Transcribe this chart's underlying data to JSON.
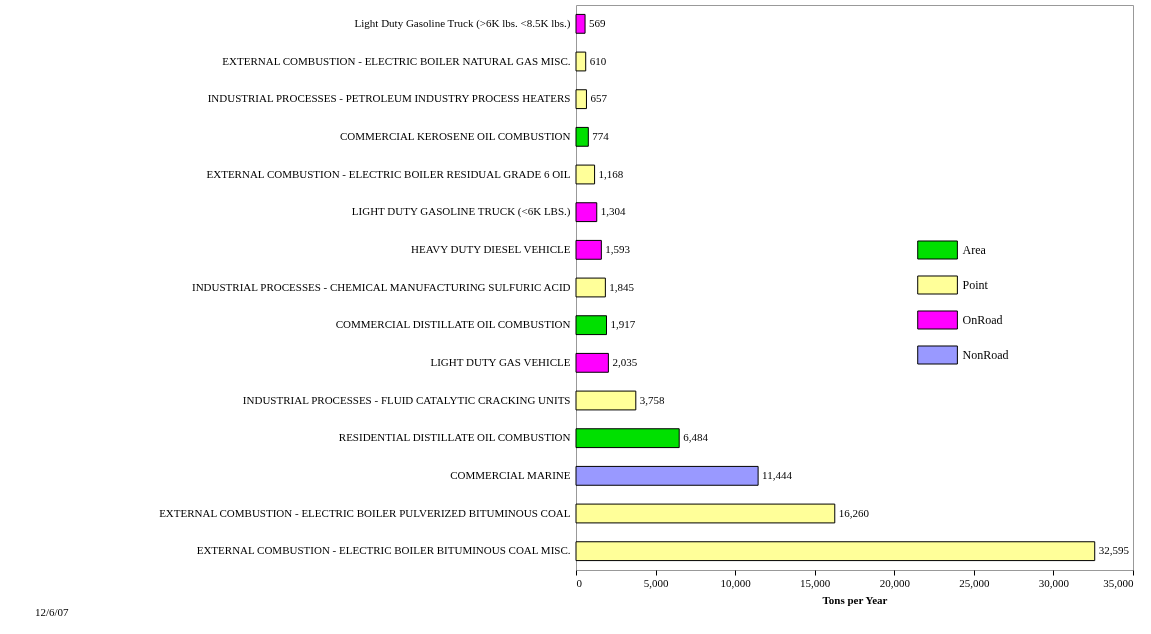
{
  "chart_data": {
    "type": "bar",
    "orientation": "horizontal",
    "categories": [
      "Light Duty Gasoline Truck (>6K lbs. <8.5K lbs.)",
      "EXTERNAL COMBUSTION - ELECTRIC BOILER NATURAL GAS MISC.",
      "INDUSTRIAL PROCESSES - PETROLEUM INDUSTRY PROCESS HEATERS",
      "COMMERCIAL KEROSENE OIL COMBUSTION",
      "EXTERNAL COMBUSTION - ELECTRIC BOILER RESIDUAL GRADE 6 OIL",
      "LIGHT DUTY GASOLINE TRUCK (<6K LBS.)",
      "HEAVY DUTY DIESEL VEHICLE",
      "INDUSTRIAL PROCESSES - CHEMICAL MANUFACTURING SULFURIC ACID",
      "COMMERCIAL DISTILLATE OIL COMBUSTION",
      "LIGHT DUTY GAS VEHICLE",
      "INDUSTRIAL PROCESSES - FLUID CATALYTIC CRACKING UNITS",
      "RESIDENTIAL DISTILLATE OIL COMBUSTION",
      "COMMERCIAL MARINE",
      "EXTERNAL COMBUSTION - ELECTRIC BOILER PULVERIZED BITUMINOUS COAL",
      "EXTERNAL COMBUSTION - ELECTRIC BOILER BITUMINOUS COAL MISC."
    ],
    "series": [
      {
        "name": "Area",
        "color": "#00e000",
        "values": [
          null,
          null,
          null,
          774,
          null,
          null,
          null,
          null,
          1917,
          null,
          null,
          6484,
          null,
          null,
          null
        ],
        "value_labels": [
          null,
          null,
          null,
          "774",
          null,
          null,
          null,
          null,
          "1,917",
          null,
          null,
          "6,484",
          null,
          null,
          null
        ]
      },
      {
        "name": "Point",
        "color": "#ffff99",
        "values": [
          null,
          610,
          657,
          null,
          1168,
          null,
          null,
          1845,
          null,
          null,
          3758,
          null,
          null,
          16260,
          32595
        ],
        "value_labels": [
          null,
          "610",
          "657",
          null,
          "1,168",
          null,
          null,
          "1,845",
          null,
          null,
          "3,758",
          null,
          null,
          "16,260",
          "32,595"
        ]
      },
      {
        "name": "OnRoad",
        "color": "#ff00ff",
        "values": [
          569,
          null,
          null,
          null,
          null,
          1304,
          1593,
          null,
          null,
          2035,
          null,
          null,
          null,
          null,
          null
        ],
        "value_labels": [
          "569",
          null,
          null,
          null,
          null,
          "1,304",
          "1,593",
          null,
          null,
          "2,035",
          null,
          null,
          null,
          null,
          null
        ]
      },
      {
        "name": "NonRoad",
        "color": "#9999ff",
        "values": [
          null,
          null,
          null,
          null,
          null,
          null,
          null,
          null,
          null,
          null,
          null,
          null,
          11444,
          null,
          null
        ],
        "value_labels": [
          null,
          null,
          null,
          null,
          null,
          null,
          null,
          null,
          null,
          null,
          null,
          null,
          "11,444",
          null,
          null
        ]
      }
    ],
    "xlabel": "Tons per Year",
    "xlim": [
      0,
      35000
    ],
    "xticks": [
      {
        "value": 0,
        "label": "0"
      },
      {
        "value": 5000,
        "label": "5,000"
      },
      {
        "value": 10000,
        "label": "10,000"
      },
      {
        "value": 15000,
        "label": "15,000"
      },
      {
        "value": 20000,
        "label": "20,000"
      },
      {
        "value": 25000,
        "label": "25,000"
      },
      {
        "value": 30000,
        "label": "30,000"
      },
      {
        "value": 35000,
        "label": "35,000"
      }
    ],
    "legend": "right",
    "grid": false,
    "annotations": [
      "12/6/07"
    ]
  }
}
